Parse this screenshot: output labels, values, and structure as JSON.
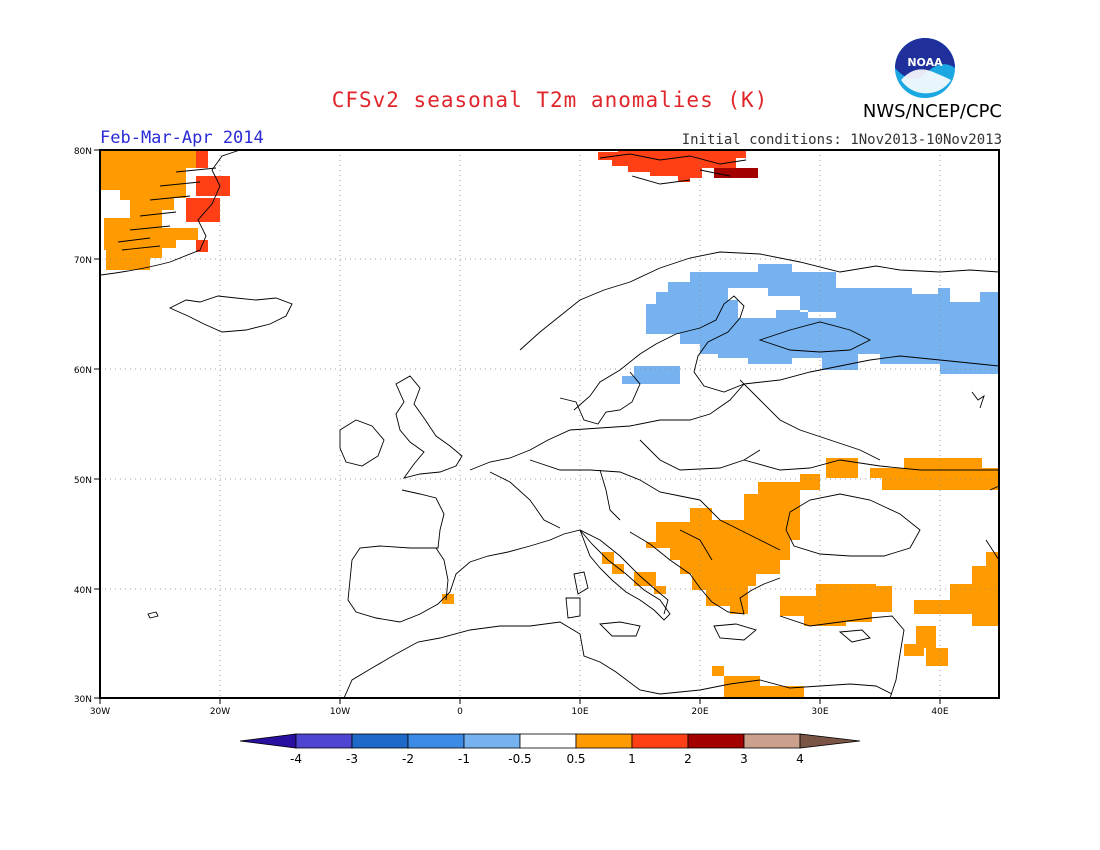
{
  "header": {
    "title": "CFSv2 seasonal T2m anomalies (K)",
    "agency": "NWS/NCEP/CPC",
    "season": "Feb-Mar-Apr 2014",
    "initial_conditions": "Initial conditions: 1Nov2013-10Nov2013",
    "logo_text": "NOAA"
  },
  "map": {
    "lon_range": [
      -30,
      45
    ],
    "lat_range": [
      30,
      80
    ],
    "x_ticks": [
      "30W",
      "20W",
      "10W",
      "0",
      "10E",
      "20E",
      "30E",
      "40E"
    ],
    "y_ticks": [
      "30N",
      "40N",
      "50N",
      "60N",
      "70N",
      "80N"
    ],
    "anomaly_regions": [
      {
        "name": "Greenland east coast",
        "category": "0.5 to 1"
      },
      {
        "name": "Greenland fjords",
        "category": "1 to 2"
      },
      {
        "name": "Svalbard",
        "category": "1 to 2"
      },
      {
        "name": "Svalbard east",
        "category": "2 to 3"
      },
      {
        "name": "Scandinavia and western Russia",
        "category": "-1 to -0.5"
      },
      {
        "name": "Balkans, Ukraine, Turkey",
        "category": "0.5 to 1"
      },
      {
        "name": "Spain spot",
        "category": "0.5 to 1"
      },
      {
        "name": "Libya / Egypt coast",
        "category": "0.5 to 1"
      }
    ]
  },
  "colorbar": {
    "ticks": [
      "-4",
      "-3",
      "-2",
      "-1",
      "-0.5",
      "0.5",
      "1",
      "2",
      "3",
      "4"
    ],
    "colors": [
      "#2a0fa0",
      "#4f45d3",
      "#1f69c9",
      "#3b8ae6",
      "#76b2f0",
      "#ffffff",
      "#ff9b00",
      "#ff4016",
      "#a30000",
      "#cba08d",
      "#7a5444"
    ]
  }
}
